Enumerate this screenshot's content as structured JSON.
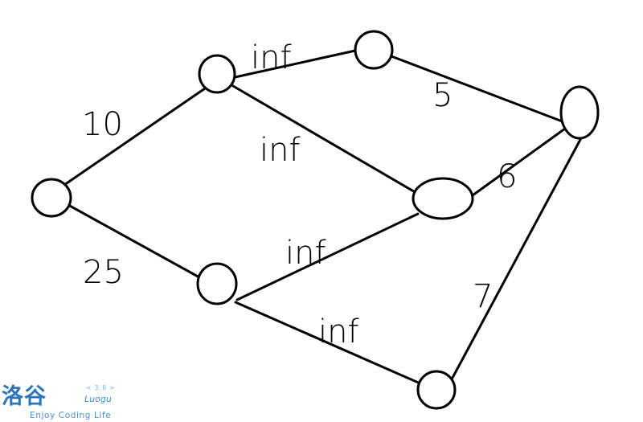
{
  "graph": {
    "nodes": [
      {
        "id": "s"
      },
      {
        "id": "a"
      },
      {
        "id": "b"
      },
      {
        "id": "c"
      },
      {
        "id": "d"
      },
      {
        "id": "e"
      },
      {
        "id": "t"
      }
    ],
    "edges": [
      {
        "from": "s",
        "to": "a",
        "label": "10"
      },
      {
        "from": "s",
        "to": "b",
        "label": "25"
      },
      {
        "from": "a",
        "to": "c",
        "label": "inf"
      },
      {
        "from": "a",
        "to": "d",
        "label": "inf"
      },
      {
        "from": "b",
        "to": "d",
        "label": "inf"
      },
      {
        "from": "b",
        "to": "e",
        "label": "inf"
      },
      {
        "from": "c",
        "to": "t",
        "label": "5"
      },
      {
        "from": "d",
        "to": "t",
        "label": "6"
      },
      {
        "from": "e",
        "to": "t",
        "label": "7"
      }
    ]
  },
  "watermark": {
    "logo_text": "洛谷",
    "brand": "Luogu",
    "version": "< 3.0 >",
    "tagline": "Enjoy Coding Life",
    "color": "#3b8cd6"
  }
}
